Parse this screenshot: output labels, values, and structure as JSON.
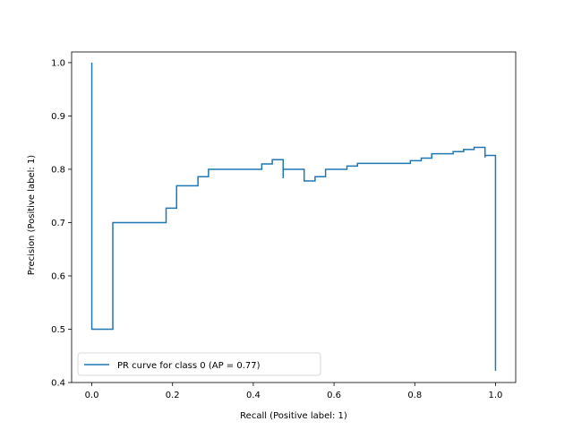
{
  "chart_data": {
    "type": "line",
    "title": "",
    "xlabel": "Recall (Positive label: 1)",
    "ylabel": "Precision (Positive label: 1)",
    "xlim": [
      -0.05,
      1.05
    ],
    "ylim": [
      0.4,
      1.02
    ],
    "xticks": [
      0.0,
      0.2,
      0.4,
      0.6,
      0.8,
      1.0
    ],
    "yticks": [
      0.4,
      0.5,
      0.6,
      0.7,
      0.8,
      0.9,
      1.0
    ],
    "xtick_labels": [
      "0.0",
      "0.2",
      "0.4",
      "0.6",
      "0.8",
      "1.0"
    ],
    "ytick_labels": [
      "0.4",
      "0.5",
      "0.6",
      "0.7",
      "0.8",
      "0.9",
      "1.0"
    ],
    "grid": false,
    "legend": "lower-left",
    "series": [
      {
        "name": "PR curve for class 0 (AP = 0.77)",
        "color": "#1f77b4",
        "step": "post",
        "x": [
          0.0,
          0.0,
          0.052,
          0.052,
          0.184,
          0.184,
          0.21,
          0.21,
          0.263,
          0.263,
          0.289,
          0.289,
          0.421,
          0.421,
          0.447,
          0.447,
          0.474,
          0.474,
          0.474,
          0.526,
          0.526,
          0.553,
          0.553,
          0.579,
          0.579,
          0.632,
          0.632,
          0.658,
          0.658,
          0.789,
          0.789,
          0.816,
          0.816,
          0.842,
          0.842,
          0.895,
          0.895,
          0.921,
          0.921,
          0.947,
          0.947,
          0.974,
          0.974,
          0.974,
          1.0,
          1.0
        ],
        "y": [
          1.0,
          0.5,
          0.5,
          0.7,
          0.7,
          0.727,
          0.727,
          0.769,
          0.769,
          0.786,
          0.786,
          0.8,
          0.8,
          0.81,
          0.81,
          0.818,
          0.818,
          0.783,
          0.8,
          0.8,
          0.778,
          0.778,
          0.786,
          0.786,
          0.8,
          0.8,
          0.806,
          0.806,
          0.811,
          0.811,
          0.816,
          0.816,
          0.821,
          0.821,
          0.829,
          0.829,
          0.833,
          0.833,
          0.837,
          0.837,
          0.841,
          0.841,
          0.822,
          0.826,
          0.826,
          0.422
        ]
      }
    ]
  }
}
